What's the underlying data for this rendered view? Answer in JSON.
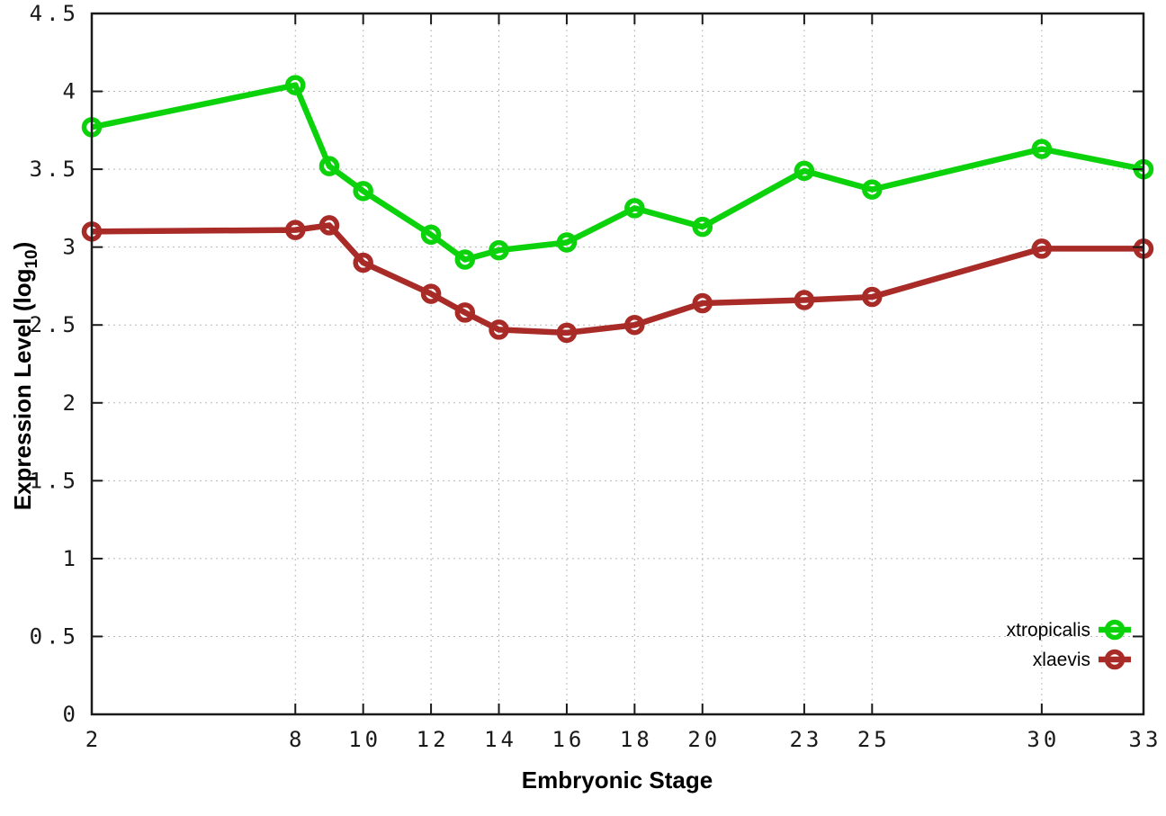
{
  "figure": {
    "xlabel": "Embryonic Stage",
    "ylabel_prefix": "Expression Level (log",
    "ylabel_sub": "10",
    "ylabel_suffix": ")"
  },
  "chart_data": {
    "type": "line",
    "title": "",
    "xlabel": "Embryonic Stage",
    "ylabel": "Expression Level (log10)",
    "x": [
      2,
      8,
      9,
      10,
      12,
      13,
      14,
      16,
      18,
      20,
      23,
      25,
      30,
      33
    ],
    "x_ticks": [
      2,
      8,
      10,
      12,
      14,
      16,
      18,
      20,
      23,
      25,
      30,
      33
    ],
    "x_tick_labels": [
      "2",
      "8",
      "10",
      "12",
      "14",
      "16",
      "18",
      "20",
      "23",
      "25",
      "30",
      "33"
    ],
    "y_ticks": [
      0,
      0.5,
      1,
      1.5,
      2,
      2.5,
      3,
      3.5,
      4,
      4.5
    ],
    "y_tick_labels": [
      "0",
      "0.5",
      "1",
      "1.5",
      "2",
      "2.5",
      "3",
      "3.5",
      "4",
      "4.5"
    ],
    "xlim": [
      2,
      33
    ],
    "ylim": [
      0,
      4.5
    ],
    "grid": true,
    "grid_style": "dotted",
    "legend_position": "inside-bottom-right",
    "marker": "open-circle",
    "series": [
      {
        "name": "xtropicalis",
        "color": "#0bd20b",
        "values": [
          3.77,
          4.04,
          3.52,
          3.36,
          3.08,
          2.92,
          2.98,
          3.03,
          3.25,
          3.13,
          3.49,
          3.37,
          3.63,
          3.5
        ]
      },
      {
        "name": "xlaevis",
        "color": "#a82b27",
        "values": [
          3.1,
          3.11,
          3.14,
          2.9,
          2.7,
          2.58,
          2.47,
          2.45,
          2.5,
          2.64,
          2.66,
          2.68,
          2.99,
          2.99
        ]
      }
    ]
  },
  "colors": {
    "background": "#ffffff",
    "grid": "#b8b8b8",
    "axis": "#1a1a1a"
  }
}
